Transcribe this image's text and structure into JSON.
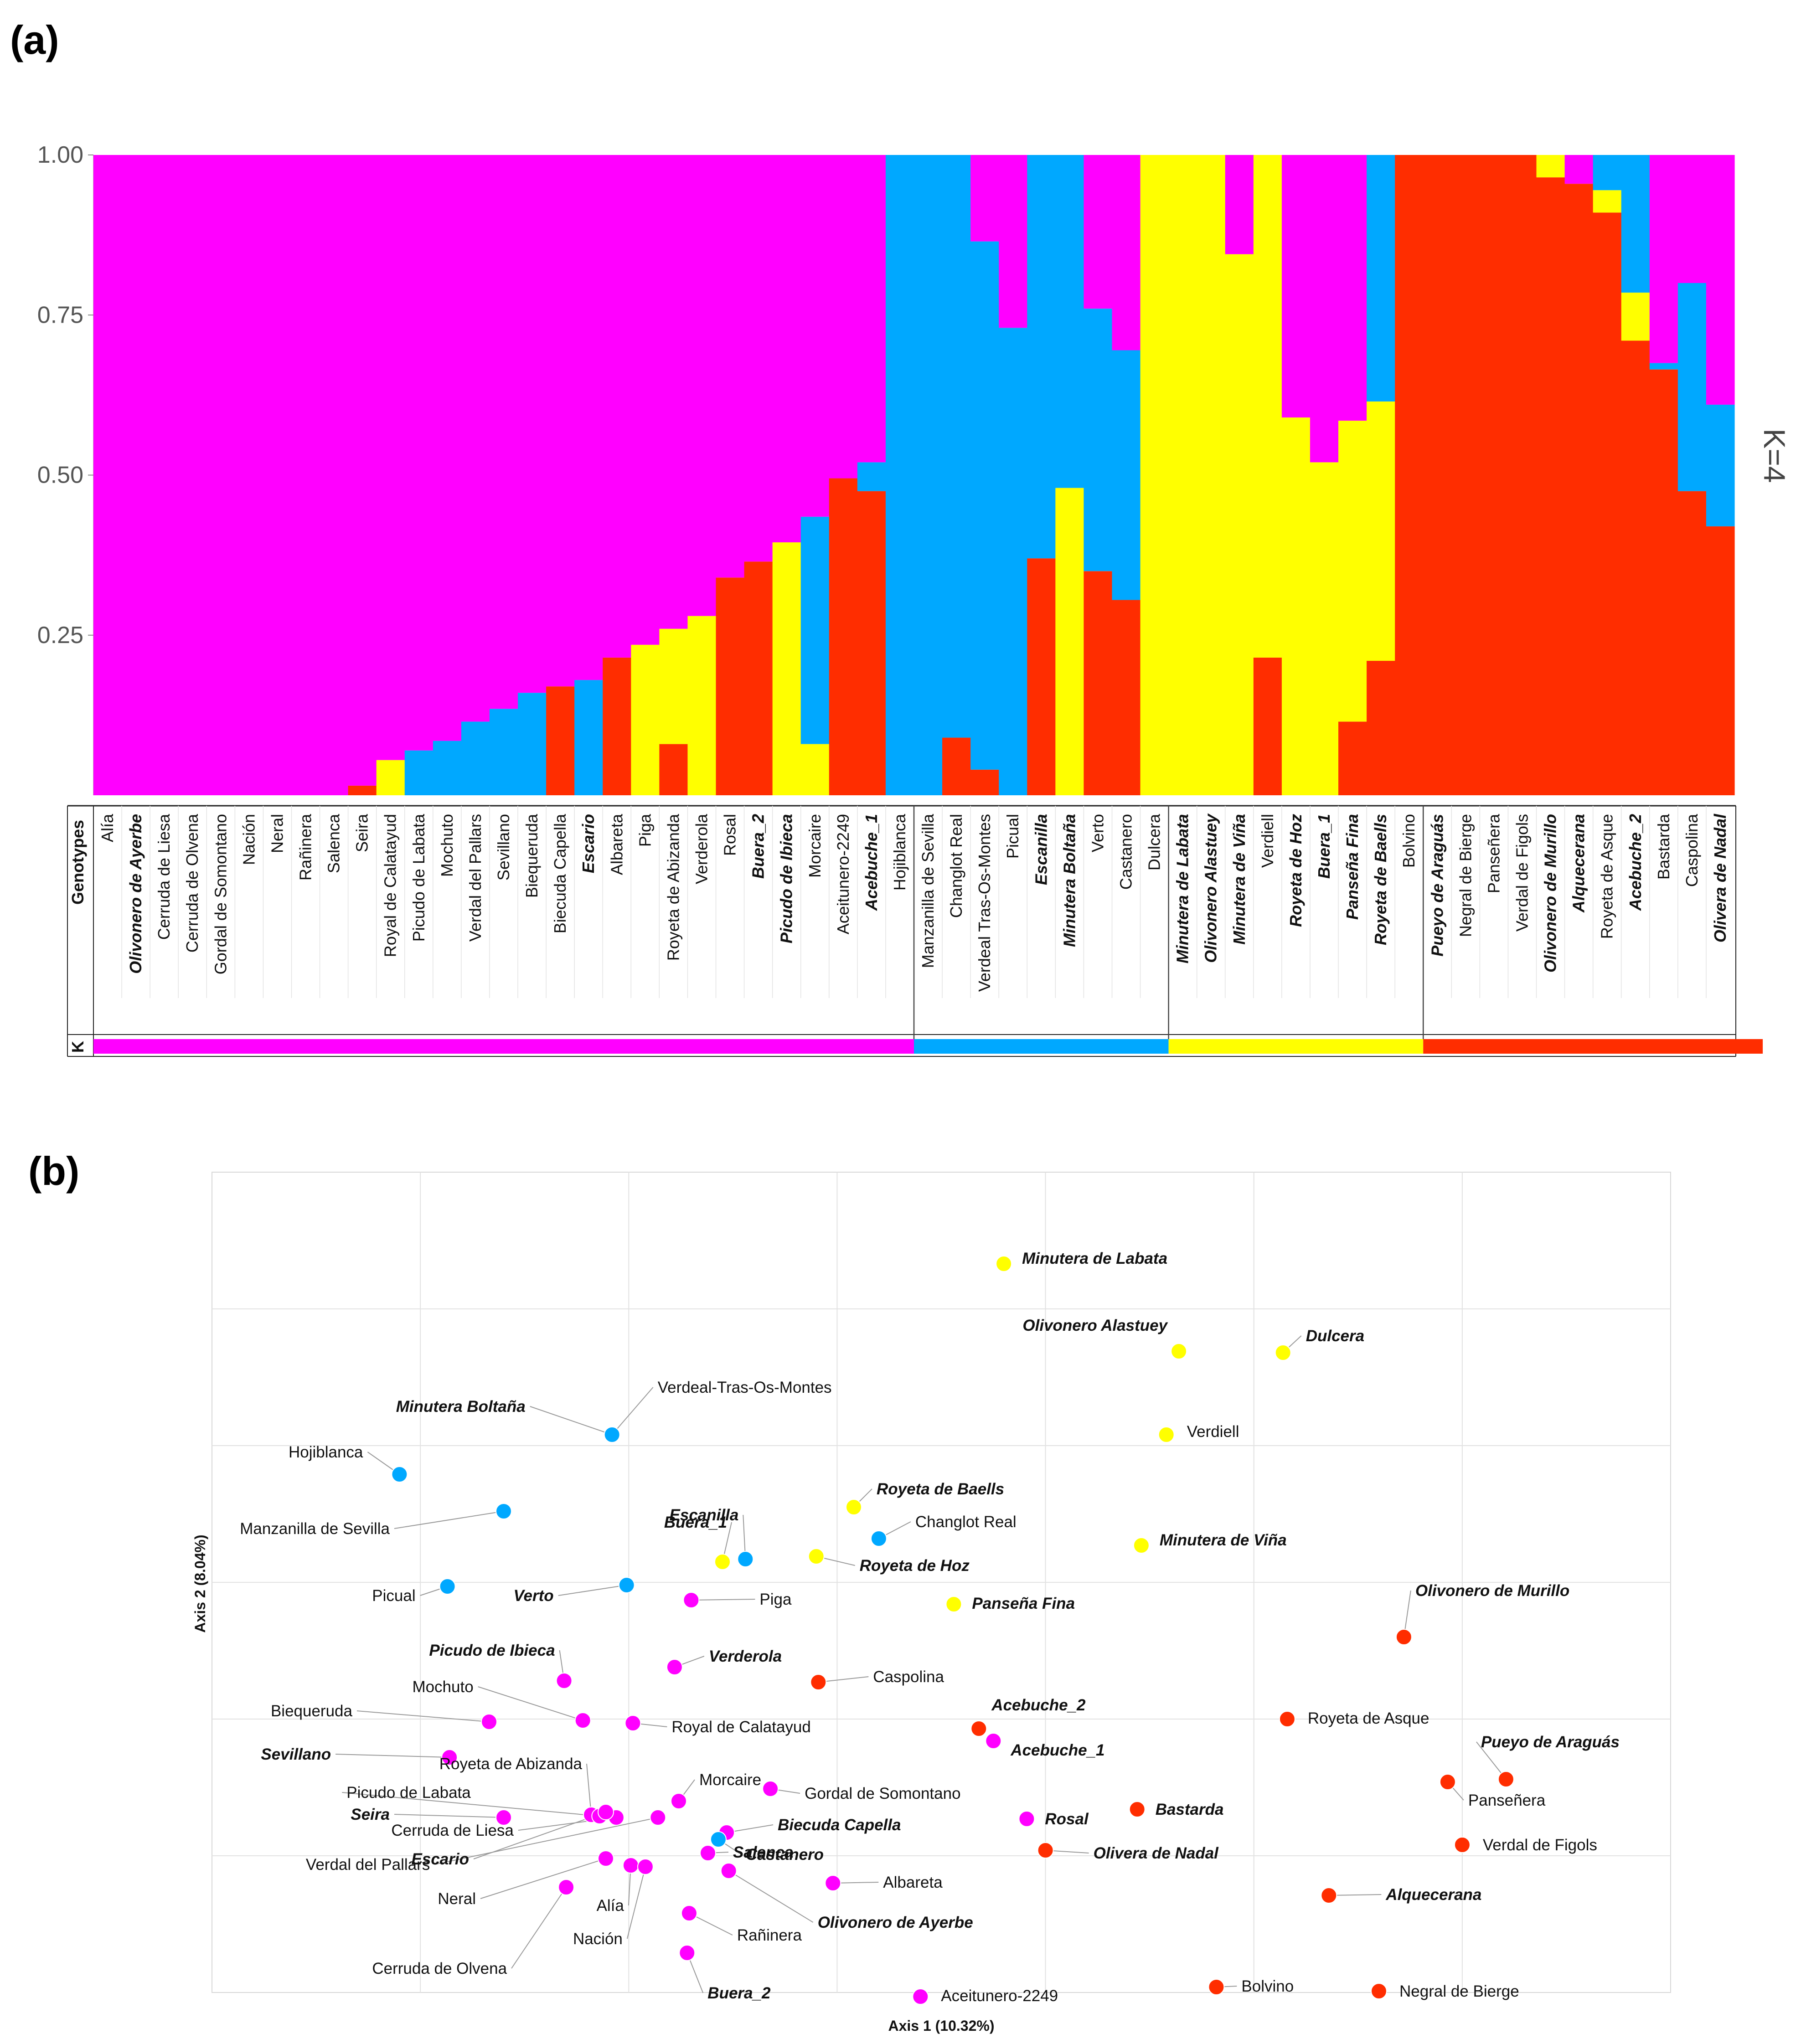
{
  "panel_a_label": "(a)",
  "panel_b_label": "(b)",
  "colors": {
    "magenta": "#ff00ff",
    "blue": "#00a8ff",
    "yellow": "#ffff00",
    "red": "#ff2d00"
  },
  "chart_data": [
    {
      "type": "bar",
      "subtype": "stacked-100-structure",
      "title": "",
      "k_label": "K=4",
      "row_header_genotypes": "Genotypes",
      "row_header_k": "K",
      "ylim": [
        0,
        1
      ],
      "yticks": [
        "0.25",
        "0.50",
        "0.75",
        "1.00"
      ],
      "series_order": [
        "red",
        "yellow",
        "blue",
        "magenta"
      ],
      "group_colors": [
        "magenta",
        "blue",
        "yellow",
        "red"
      ],
      "group_sizes": [
        29,
        9,
        9,
        12
      ],
      "genotypes": [
        {
          "name": "Alía",
          "bold": false,
          "red": 0,
          "yellow": 0,
          "blue": 0,
          "magenta": 1
        },
        {
          "name": "Olivonero de Ayerbe",
          "bold": true,
          "red": 0,
          "yellow": 0,
          "blue": 0,
          "magenta": 1
        },
        {
          "name": "Cerruda de Liesa",
          "bold": false,
          "red": 0,
          "yellow": 0,
          "blue": 0,
          "magenta": 1
        },
        {
          "name": "Cerruda de Olvena",
          "bold": false,
          "red": 0,
          "yellow": 0,
          "blue": 0,
          "magenta": 1
        },
        {
          "name": "Gordal de Somontano",
          "bold": false,
          "red": 0,
          "yellow": 0,
          "blue": 0,
          "magenta": 1
        },
        {
          "name": "Nación",
          "bold": false,
          "red": 0,
          "yellow": 0,
          "blue": 0,
          "magenta": 1
        },
        {
          "name": "Neral",
          "bold": false,
          "red": 0,
          "yellow": 0,
          "blue": 0,
          "magenta": 1
        },
        {
          "name": "Rañinera",
          "bold": false,
          "red": 0,
          "yellow": 0,
          "blue": 0,
          "magenta": 1
        },
        {
          "name": "Salenca",
          "bold": false,
          "red": 0,
          "yellow": 0,
          "blue": 0,
          "magenta": 1
        },
        {
          "name": "Seira",
          "bold": false,
          "red": 0.015,
          "yellow": 0,
          "blue": 0,
          "magenta": 0.985
        },
        {
          "name": "Royal de Calatayud",
          "bold": false,
          "red": 0,
          "yellow": 0.055,
          "blue": 0,
          "magenta": 0.945
        },
        {
          "name": "Picudo de Labata",
          "bold": false,
          "red": 0,
          "yellow": 0,
          "blue": 0.07,
          "magenta": 0.93
        },
        {
          "name": "Mochuto",
          "bold": false,
          "red": 0,
          "yellow": 0,
          "blue": 0.085,
          "magenta": 0.915
        },
        {
          "name": "Verdal del Pallars",
          "bold": false,
          "red": 0,
          "yellow": 0,
          "blue": 0.115,
          "magenta": 0.885
        },
        {
          "name": "Sevillano",
          "bold": false,
          "red": 0,
          "yellow": 0,
          "blue": 0.135,
          "magenta": 0.865
        },
        {
          "name": "Biequeruda",
          "bold": false,
          "red": 0,
          "yellow": 0,
          "blue": 0.16,
          "magenta": 0.84
        },
        {
          "name": "Biecuda Capella",
          "bold": false,
          "red": 0.17,
          "yellow": 0,
          "blue": 0,
          "magenta": 0.83
        },
        {
          "name": "Escario",
          "bold": true,
          "red": 0,
          "yellow": 0,
          "blue": 0.18,
          "magenta": 0.82
        },
        {
          "name": "Albareta",
          "bold": false,
          "red": 0.215,
          "yellow": 0,
          "blue": 0,
          "magenta": 0.785
        },
        {
          "name": "Piga",
          "bold": false,
          "red": 0,
          "yellow": 0.235,
          "blue": 0,
          "magenta": 0.765
        },
        {
          "name": "Royeta de Abizanda",
          "bold": false,
          "red": 0.08,
          "yellow": 0.18,
          "blue": 0,
          "magenta": 0.74
        },
        {
          "name": "Verderola",
          "bold": false,
          "red": 0,
          "yellow": 0.28,
          "blue": 0,
          "magenta": 0.72
        },
        {
          "name": "Rosal",
          "bold": false,
          "red": 0.34,
          "yellow": 0,
          "blue": 0,
          "magenta": 0.66
        },
        {
          "name": "Buera_2",
          "bold": true,
          "red": 0.365,
          "yellow": 0,
          "blue": 0,
          "magenta": 0.635
        },
        {
          "name": "Picudo de Ibieca",
          "bold": true,
          "red": 0,
          "yellow": 0.395,
          "blue": 0,
          "magenta": 0.605
        },
        {
          "name": "Morcaire",
          "bold": false,
          "red": 0,
          "yellow": 0.08,
          "blue": 0.355,
          "magenta": 0.565
        },
        {
          "name": "Aceitunero-2249",
          "bold": false,
          "red": 0.495,
          "yellow": 0,
          "blue": 0,
          "magenta": 0.505
        },
        {
          "name": "Acebuche_1",
          "bold": true,
          "red": 0.475,
          "yellow": 0,
          "blue": 0.045,
          "magenta": 0.48
        },
        {
          "name": "Hojiblanca",
          "bold": false,
          "red": 0,
          "yellow": 0,
          "blue": 1,
          "magenta": 0
        },
        {
          "name": "Manzanilla de Sevilla",
          "bold": false,
          "red": 0,
          "yellow": 0,
          "blue": 1,
          "magenta": 0
        },
        {
          "name": "Changlot Real",
          "bold": false,
          "red": 0.09,
          "yellow": 0,
          "blue": 0.91,
          "magenta": 0
        },
        {
          "name": "Verdeal Tras-Os-Montes",
          "bold": false,
          "red": 0.04,
          "yellow": 0,
          "blue": 0.825,
          "magenta": 0.135
        },
        {
          "name": "Picual",
          "bold": false,
          "red": 0,
          "yellow": 0,
          "blue": 0.73,
          "magenta": 0.27
        },
        {
          "name": "Escanilla",
          "bold": true,
          "red": 0.37,
          "yellow": 0,
          "blue": 0.63,
          "magenta": 0
        },
        {
          "name": "Minutera Boltaña",
          "bold": true,
          "red": 0,
          "yellow": 0.48,
          "blue": 0.52,
          "magenta": 0
        },
        {
          "name": "Verto",
          "bold": false,
          "red": 0.35,
          "yellow": 0,
          "blue": 0.41,
          "magenta": 0.24
        },
        {
          "name": "Castanero",
          "bold": false,
          "red": 0.305,
          "yellow": 0,
          "blue": 0.39,
          "magenta": 0.305
        },
        {
          "name": "Dulcera",
          "bold": false,
          "red": 0,
          "yellow": 1,
          "blue": 0,
          "magenta": 0
        },
        {
          "name": "Minutera de Labata",
          "bold": true,
          "red": 0,
          "yellow": 1,
          "blue": 0,
          "magenta": 0
        },
        {
          "name": "Olivonero Alastuey",
          "bold": true,
          "red": 0,
          "yellow": 1,
          "blue": 0,
          "magenta": 0
        },
        {
          "name": "Minutera de Viña",
          "bold": true,
          "red": 0,
          "yellow": 0.845,
          "blue": 0,
          "magenta": 0.155
        },
        {
          "name": "Verdiell",
          "bold": false,
          "red": 0.215,
          "yellow": 0.785,
          "blue": 0,
          "magenta": 0
        },
        {
          "name": "Royeta de Hoz",
          "bold": true,
          "red": 0,
          "yellow": 0.59,
          "blue": 0,
          "magenta": 0.41
        },
        {
          "name": "Buera_1",
          "bold": true,
          "red": 0,
          "yellow": 0.52,
          "blue": 0,
          "magenta": 0.48
        },
        {
          "name": "Panseña Fina",
          "bold": true,
          "red": 0.115,
          "yellow": 0.47,
          "blue": 0,
          "magenta": 0.415
        },
        {
          "name": "Royeta de Baells",
          "bold": true,
          "red": 0.21,
          "yellow": 0.405,
          "blue": 0.385,
          "magenta": 0
        },
        {
          "name": "Bolvino",
          "bold": false,
          "red": 1,
          "yellow": 0,
          "blue": 0,
          "magenta": 0
        },
        {
          "name": "Pueyo de Araguás",
          "bold": true,
          "red": 1,
          "yellow": 0,
          "blue": 0,
          "magenta": 0
        },
        {
          "name": "Negral de Bierge",
          "bold": false,
          "red": 1,
          "yellow": 0,
          "blue": 0,
          "magenta": 0
        },
        {
          "name": "Panseñera",
          "bold": false,
          "red": 1,
          "yellow": 0,
          "blue": 0,
          "magenta": 0
        },
        {
          "name": "Verdal de Figols",
          "bold": false,
          "red": 1,
          "yellow": 0,
          "blue": 0,
          "magenta": 0
        },
        {
          "name": "Olivonero de Murillo",
          "bold": true,
          "red": 0.965,
          "yellow": 0.035,
          "blue": 0,
          "magenta": 0
        },
        {
          "name": "Alquecerana",
          "bold": true,
          "red": 0.955,
          "yellow": 0,
          "blue": 0,
          "magenta": 0.045
        },
        {
          "name": "Royeta de Asque",
          "bold": false,
          "red": 0.91,
          "yellow": 0.035,
          "blue": 0.055,
          "magenta": 0
        },
        {
          "name": "Acebuche_2",
          "bold": true,
          "red": 0.71,
          "yellow": 0.075,
          "blue": 0.215,
          "magenta": 0
        },
        {
          "name": "Bastarda",
          "bold": false,
          "red": 0.665,
          "yellow": 0,
          "blue": 0.01,
          "magenta": 0.325
        },
        {
          "name": "Caspolina",
          "bold": false,
          "red": 0.475,
          "yellow": 0,
          "blue": 0.325,
          "magenta": 0.2
        },
        {
          "name": "Olivera de Nadal",
          "bold": true,
          "red": 0.42,
          "yellow": 0,
          "blue": 0.19,
          "magenta": 0.39
        }
      ]
    },
    {
      "type": "scatter",
      "title": "",
      "xlabel": "Axis 1 (10.32%)",
      "ylabel": "Axis 2 (8.04%)",
      "xlim": [
        -2.4,
        4.6
      ],
      "ylim": [
        -2.0,
        4.0
      ],
      "gridlines_x": [
        -1.4,
        -0.4,
        0.6,
        1.6,
        2.6,
        3.6
      ],
      "gridlines_y": [
        -1.0,
        0.0,
        1.0,
        2.0,
        3.0
      ],
      "points": [
        {
          "label": "Minutera de Labata",
          "bold": true,
          "color": "yellow",
          "x": 1.4,
          "y": 3.33
        },
        {
          "label": "Olivonero Alastuey",
          "bold": true,
          "color": "yellow",
          "x": 2.24,
          "y": 2.69
        },
        {
          "label": "Dulcera",
          "bold": true,
          "color": "yellow",
          "x": 2.74,
          "y": 2.68
        },
        {
          "label": "Verdiell",
          "bold": false,
          "color": "yellow",
          "x": 2.18,
          "y": 2.08
        },
        {
          "label": "Verdeal-Tras-Os-Montes",
          "bold": false,
          "color": "blue",
          "x": -0.48,
          "y": 2.08
        },
        {
          "label": "Minutera Boltaña",
          "bold": true,
          "color": "blue",
          "x": -0.48,
          "y": 2.08
        },
        {
          "label": "Hojiblanca",
          "bold": false,
          "color": "blue",
          "x": -1.5,
          "y": 1.79
        },
        {
          "label": "Royeta de Baells",
          "bold": true,
          "color": "yellow",
          "x": 0.68,
          "y": 1.55
        },
        {
          "label": "Manzanilla de Sevilla",
          "bold": false,
          "color": "blue",
          "x": -1.0,
          "y": 1.52
        },
        {
          "label": "Changlot Real",
          "bold": false,
          "color": "blue",
          "x": 0.8,
          "y": 1.32
        },
        {
          "label": "Escanilla",
          "bold": true,
          "color": "blue",
          "x": 0.16,
          "y": 1.17
        },
        {
          "label": "Buera_1",
          "bold": true,
          "color": "yellow",
          "x": 0.05,
          "y": 1.15
        },
        {
          "label": "Royeta de Hoz",
          "bold": true,
          "color": "yellow",
          "x": 0.5,
          "y": 1.19
        },
        {
          "label": "Minutera de Viña",
          "bold": true,
          "color": "yellow",
          "x": 2.06,
          "y": 1.27
        },
        {
          "label": "Picual",
          "bold": false,
          "color": "blue",
          "x": -1.27,
          "y": 0.97
        },
        {
          "label": "Verto",
          "bold": true,
          "color": "blue",
          "x": -0.41,
          "y": 0.98
        },
        {
          "label": "Piga",
          "bold": false,
          "color": "magenta",
          "x": -0.1,
          "y": 0.87
        },
        {
          "label": "Panseña Fina",
          "bold": true,
          "color": "yellow",
          "x": 1.16,
          "y": 0.84
        },
        {
          "label": "Olivonero de Murillo",
          "bold": true,
          "color": "red",
          "x": 3.32,
          "y": 0.6
        },
        {
          "label": "Verderola",
          "bold": true,
          "color": "magenta",
          "x": -0.18,
          "y": 0.38
        },
        {
          "label": "Caspolina",
          "bold": false,
          "color": "red",
          "x": 0.51,
          "y": 0.27
        },
        {
          "label": "Picudo de Ibieca",
          "bold": true,
          "color": "magenta",
          "x": -0.71,
          "y": 0.28
        },
        {
          "label": "Mochuto",
          "bold": false,
          "color": "magenta",
          "x": -0.62,
          "y": -0.01
        },
        {
          "label": "Biequeruda",
          "bold": false,
          "color": "magenta",
          "x": -1.07,
          "y": -0.02
        },
        {
          "label": "Royal de Calatayud",
          "bold": false,
          "color": "magenta",
          "x": -0.38,
          "y": -0.03
        },
        {
          "label": "Acebuche_2",
          "bold": true,
          "color": "red",
          "x": 1.28,
          "y": -0.07
        },
        {
          "label": "Acebuche_1",
          "bold": true,
          "color": "magenta",
          "x": 1.35,
          "y": -0.16
        },
        {
          "label": "Royeta de Asque",
          "bold": false,
          "color": "red",
          "x": 2.76,
          "y": 0.0
        },
        {
          "label": "Sevillano",
          "bold": true,
          "color": "magenta",
          "x": -1.26,
          "y": -0.28
        },
        {
          "label": "Panseñera",
          "bold": false,
          "color": "red",
          "x": 3.53,
          "y": -0.46
        },
        {
          "label": "Pueyo de Araguás",
          "bold": true,
          "color": "red",
          "x": 3.81,
          "y": -0.44
        },
        {
          "label": "Royeta de Abizanda",
          "bold": false,
          "color": "magenta",
          "x": -0.58,
          "y": -0.7
        },
        {
          "label": "Morcaire",
          "bold": false,
          "color": "magenta",
          "x": -0.16,
          "y": -0.6
        },
        {
          "label": "Gordal de Somontano",
          "bold": false,
          "color": "magenta",
          "x": 0.28,
          "y": -0.51
        },
        {
          "label": "Picudo de Labata",
          "bold": false,
          "color": "magenta",
          "x": -0.54,
          "y": -0.71
        },
        {
          "label": "Seira",
          "bold": true,
          "color": "magenta",
          "x": -1.0,
          "y": -0.72
        },
        {
          "label": "Cerruda de Liesa",
          "bold": false,
          "color": "magenta",
          "x": -0.46,
          "y": -0.72
        },
        {
          "label": "Escario",
          "bold": true,
          "color": "magenta",
          "x": -0.51,
          "y": -0.68
        },
        {
          "label": "Verdal del Pallars",
          "bold": false,
          "color": "magenta",
          "x": -0.26,
          "y": -0.72
        },
        {
          "label": "Rosal",
          "bold": true,
          "color": "magenta",
          "x": 1.51,
          "y": -0.73
        },
        {
          "label": "Bastarda",
          "bold": true,
          "color": "red",
          "x": 2.04,
          "y": -0.66
        },
        {
          "label": "Biecuda Capella",
          "bold": true,
          "color": "magenta",
          "x": 0.07,
          "y": -0.83
        },
        {
          "label": "Castanero",
          "bold": true,
          "color": "blue",
          "x": 0.03,
          "y": -0.88
        },
        {
          "label": "Verdal de Figols",
          "bold": false,
          "color": "red",
          "x": 3.6,
          "y": -0.92
        },
        {
          "label": "Olivera de Nadal",
          "bold": true,
          "color": "red",
          "x": 1.6,
          "y": -0.96
        },
        {
          "label": "Neral",
          "bold": false,
          "color": "magenta",
          "x": -0.51,
          "y": -1.02
        },
        {
          "label": "Alía",
          "bold": false,
          "color": "magenta",
          "x": -0.39,
          "y": -1.07
        },
        {
          "label": "Nación",
          "bold": false,
          "color": "magenta",
          "x": -0.32,
          "y": -1.08
        },
        {
          "label": "Salenca",
          "bold": true,
          "color": "magenta",
          "x": -0.02,
          "y": -0.98
        },
        {
          "label": "Olivonero de Ayerbe",
          "bold": true,
          "color": "magenta",
          "x": 0.08,
          "y": -1.11
        },
        {
          "label": "Albareta",
          "bold": false,
          "color": "magenta",
          "x": 0.58,
          "y": -1.2
        },
        {
          "label": "Alquecerana",
          "bold": true,
          "color": "red",
          "x": 2.96,
          "y": -1.29
        },
        {
          "label": "Cerruda de Olvena",
          "bold": false,
          "color": "magenta",
          "x": -0.7,
          "y": -1.23
        },
        {
          "label": "Rañinera",
          "bold": false,
          "color": "magenta",
          "x": -0.11,
          "y": -1.42
        },
        {
          "label": "Buera_2",
          "bold": true,
          "color": "magenta",
          "x": -0.12,
          "y": -1.71
        },
        {
          "label": "Aceitunero-2249",
          "bold": false,
          "color": "magenta",
          "x": 1.0,
          "y": -2.03
        },
        {
          "label": "Bolvino",
          "bold": false,
          "color": "red",
          "x": 2.42,
          "y": -1.96
        },
        {
          "label": "Negral de Bierge",
          "bold": false,
          "color": "red",
          "x": 3.2,
          "y": -1.99
        }
      ]
    }
  ]
}
